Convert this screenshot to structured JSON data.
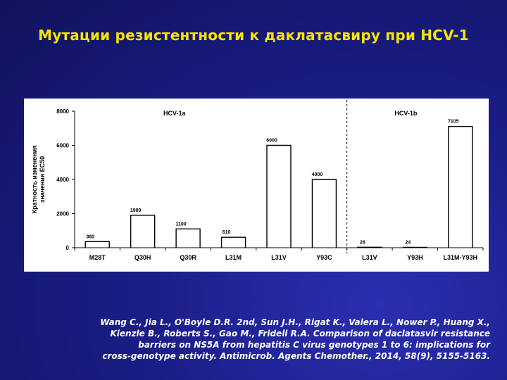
{
  "slide": {
    "title": "Мутации резистентности к даклатасвиру при HCV-1",
    "citation_lines": [
      "Wang C., Jia L., O'Boyle D.R. 2nd, Sun J.H., Rigat K., Valera L., Nower P., Huang X.,",
      "Kienzle B., Roberts S., Gao M., Fridell R.A. Comparison of daclatasvir resistance",
      "barriers on NS5A from hepatitis C virus genotypes 1 to 6: implications for",
      "cross-genotype activity. Antimicrob. Agents Chemother., 2014, 58(9), 5155-5163."
    ]
  },
  "chart_data": {
    "type": "bar",
    "ylabel_lines": [
      "Кратность изменения",
      "значения ЕС50"
    ],
    "ylim": [
      0,
      8000
    ],
    "yticks": [
      0,
      2000,
      4000,
      6000,
      8000
    ],
    "categories": [
      "M28T",
      "Q30H",
      "Q30R",
      "L31M",
      "L31V",
      "Y93C",
      "L31V",
      "Y93H",
      "L31M-Y93H"
    ],
    "values": [
      360,
      1900,
      1100,
      610,
      6000,
      4000,
      28,
      24,
      7105
    ],
    "value_labels": [
      "360",
      "1900",
      "1100",
      "610",
      "6000",
      "4000",
      "28",
      "24",
      "7105"
    ],
    "groups": [
      {
        "label": "HCV-1a",
        "count": 6
      },
      {
        "label": "HCV-1b",
        "count": 3
      }
    ],
    "grid": false,
    "colors": {
      "bar": "#000000",
      "axis": "#000000",
      "divider": "#000000"
    }
  }
}
